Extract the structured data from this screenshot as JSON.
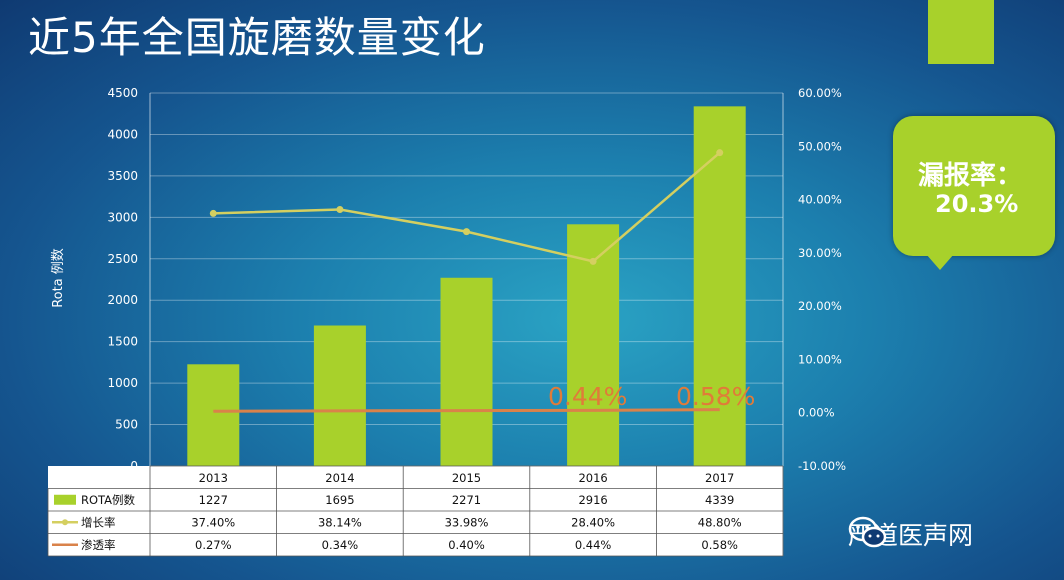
{
  "title": "近5年全国旋磨数量变化",
  "callout": {
    "label": "漏报率：",
    "value": "20.3%"
  },
  "watermark": "严道医声网",
  "colors": {
    "bar": "#a8d12b",
    "growth_line": "#d4cf60",
    "penetration_line": "#d9824a",
    "annotation": "#e07b39"
  },
  "chart_data": {
    "type": "bar",
    "categories": [
      "2013",
      "2014",
      "2015",
      "2016",
      "2017"
    ],
    "ylabel": "Rota 例数",
    "ylim": [
      0,
      4500
    ],
    "y_ticks": [
      "0",
      "500",
      "1000",
      "1500",
      "2000",
      "2500",
      "3000",
      "3500",
      "4000",
      "4500"
    ],
    "y2lim": [
      -10,
      60
    ],
    "y2_ticks": [
      "-10.00%",
      "0.00%",
      "10.00%",
      "20.00%",
      "30.00%",
      "40.00%",
      "50.00%",
      "60.00%"
    ],
    "series": [
      {
        "name": "ROTA例数",
        "type": "bar",
        "axis": "left",
        "values": [
          1227,
          1695,
          2271,
          2916,
          4339
        ],
        "labels": [
          "1227",
          "1695",
          "2271",
          "2916",
          "4339"
        ]
      },
      {
        "name": "增长率",
        "type": "line",
        "axis": "right",
        "values": [
          37.4,
          38.14,
          33.98,
          28.4,
          48.8
        ],
        "labels": [
          "37.40%",
          "38.14%",
          "33.98%",
          "28.40%",
          "48.80%"
        ]
      },
      {
        "name": "渗透率",
        "type": "line",
        "axis": "right",
        "values": [
          0.27,
          0.34,
          0.4,
          0.44,
          0.58
        ],
        "labels": [
          "0.27%",
          "0.34%",
          "0.40%",
          "0.44%",
          "0.58%"
        ]
      }
    ],
    "annotations": [
      "0.44%",
      "0.58%"
    ],
    "grid": true,
    "legend": "data-table"
  }
}
